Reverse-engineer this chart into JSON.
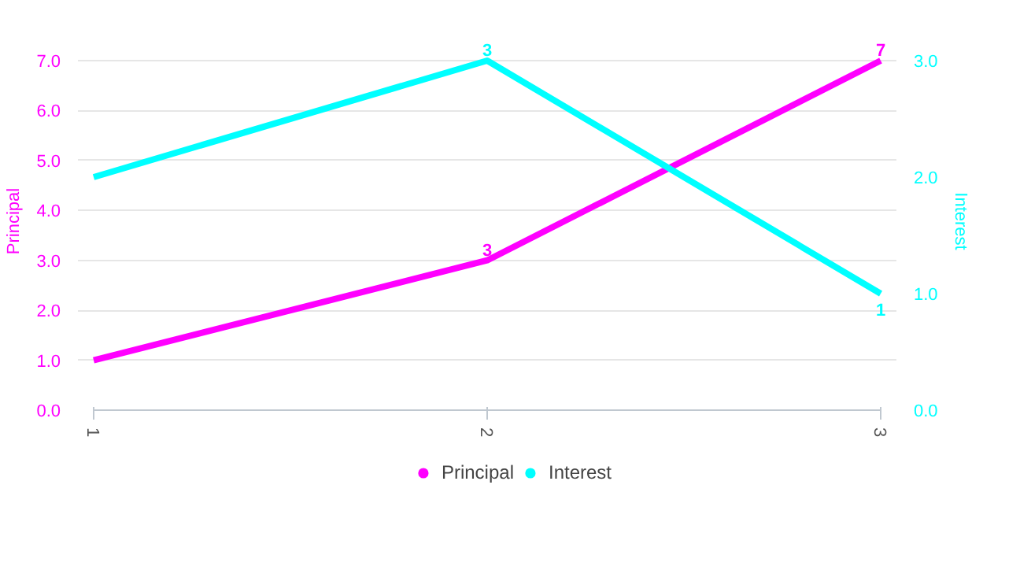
{
  "chart_data": {
    "type": "line",
    "x": [
      1,
      2,
      3
    ],
    "xlim": [
      1,
      3
    ],
    "xticks": [
      1,
      2,
      3
    ],
    "ylabel": "Principal",
    "y2label": "Interest",
    "ylim": [
      0,
      7
    ],
    "yticks": [
      {
        "value": 0,
        "label": "0.0"
      },
      {
        "value": 1,
        "label": "1.0"
      },
      {
        "value": 2,
        "label": "2.0"
      },
      {
        "value": 3,
        "label": "3.0"
      },
      {
        "value": 4,
        "label": "4.0"
      },
      {
        "value": 5,
        "label": "5.0"
      },
      {
        "value": 6,
        "label": "6.0"
      },
      {
        "value": 7,
        "label": "7.0"
      }
    ],
    "y2lim": [
      0,
      3
    ],
    "y2ticks": [
      {
        "value": 0,
        "label": "0.0"
      },
      {
        "value": 1,
        "label": "1.0"
      },
      {
        "value": 2,
        "label": "2.0"
      },
      {
        "value": 3,
        "label": "3.0"
      }
    ],
    "grid": "y",
    "legend": "bottom",
    "marker": "none",
    "line_style": "solid",
    "series": [
      {
        "name": "Principal",
        "color": "#ff00ff",
        "values": [
          1,
          3,
          7
        ],
        "value_labels": [
          null,
          "3",
          "7"
        ]
      },
      {
        "name": "Interest",
        "color": "#00ffff",
        "values": [
          2,
          3,
          1
        ],
        "value_labels": [
          null,
          "3",
          "1"
        ],
        "axis": "y2"
      }
    ]
  }
}
